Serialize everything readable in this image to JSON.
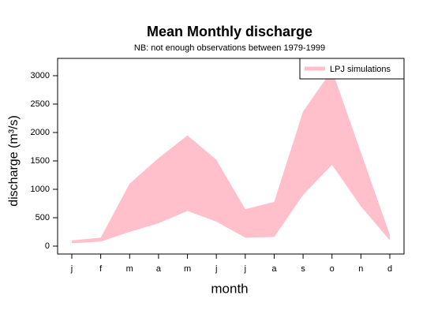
{
  "chart_data": {
    "type": "band",
    "title": "Mean Monthly discharge",
    "subtitle": "NB: not enough observations between 1979-1999",
    "x_label": "month",
    "y_label": "discharge (m³/s)",
    "categories": [
      "j",
      "f",
      "m",
      "a",
      "m",
      "j",
      "j",
      "a",
      "s",
      "o",
      "n",
      "d"
    ],
    "series": [
      {
        "name": "LPJ simulations",
        "color": "#ffc0cb",
        "high": [
          100,
          150,
          1100,
          1550,
          1950,
          1520,
          650,
          780,
          2370,
          3100,
          1650,
          200
        ],
        "low": [
          50,
          80,
          250,
          400,
          620,
          430,
          150,
          160,
          900,
          1430,
          700,
          100
        ]
      }
    ],
    "ylim": [
      -139,
      3305
    ],
    "yticks": [
      0,
      500,
      1000,
      1500,
      2000,
      2500,
      3000
    ],
    "legend": "top-right"
  }
}
